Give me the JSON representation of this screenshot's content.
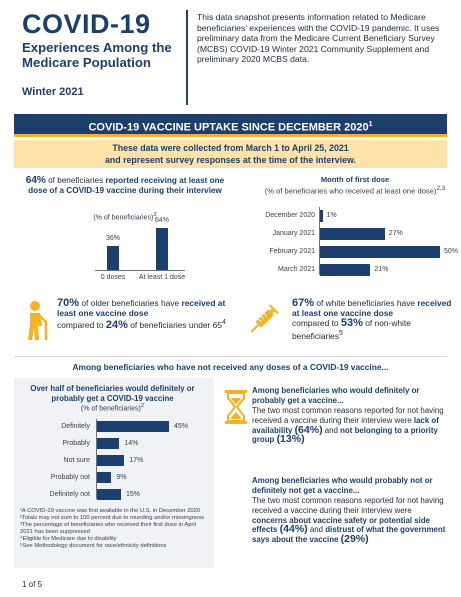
{
  "header": {
    "title": "COVID-19",
    "subtitle": "Experiences Among the Medicare Population",
    "season": "Winter 2021",
    "intro": "This data snapshot presents information related to Medicare beneficiaries’ experiences with the COVID-19 pandemic. It uses preliminary data from the Medicare Current Beneficiary Survey (MCBS) COVID-19 Winter 2021 Community Supplement and preliminary 2020 MCBS data."
  },
  "banner": {
    "text": "COVID-19 VACCINE UPTAKE SINCE DECEMBER 2020",
    "sup": "1"
  },
  "note": {
    "line1": "These data were collected from March 1 to April 25, 2021",
    "line2": "and represent survey responses at the time of the interview."
  },
  "left_stat": {
    "pct": "64%",
    "text1": " of beneficiaries ",
    "bold": "reported receiving at least one dose of a COVID-19 vaccine during their interview",
    "pct_note": "(% of beneficiaries)",
    "pct_note_sup": "2"
  },
  "month_chart": {
    "title": "Month of first dose",
    "subtitle": "(% of beneficiaries who received at least one dose)",
    "subtitle_sup": "2,3"
  },
  "stat_older": {
    "pct": "70%",
    "text1": " of older beneficiaries have ",
    "bold": "received at least one vaccine dose",
    "text2": " compared to ",
    "pct2": "24%",
    "text3": " of beneficiaries under 65",
    "sup": "4"
  },
  "stat_white": {
    "pct": "67%",
    "text1": " of white beneficiaries have ",
    "bold": "received at least one vaccine dose",
    "text2": " compared to ",
    "pct2": "53%",
    "text3": " of non-white beneficiaries",
    "sup": "5"
  },
  "section2": "Among beneficiaries who have not received any doses of a COVID-19 vaccine...",
  "likelihood_chart": {
    "title": "Over half of beneficiaries would definitely or probably get a COVID-19 vaccine",
    "subtitle": "(% of beneficiaries)",
    "subtitle_sup": "2"
  },
  "chart_data": [
    {
      "type": "bar",
      "categories": [
        "0 doses",
        "At least 1 dose"
      ],
      "values": [
        36,
        64
      ],
      "labels": [
        "36%",
        "64%"
      ]
    },
    {
      "type": "bar",
      "orientation": "horizontal",
      "title": "Month of first dose",
      "categories": [
        "December 2020",
        "January 2021",
        "February 2021",
        "March 2021"
      ],
      "values": [
        1,
        27,
        50,
        21
      ],
      "labels": [
        "1%",
        "27%",
        "50%",
        "21%"
      ]
    },
    {
      "type": "bar",
      "orientation": "horizontal",
      "title": "Over half of beneficiaries would definitely or probably get a COVID-19 vaccine",
      "categories": [
        "Definitely",
        "Probably",
        "Not sure",
        "Probably not",
        "Definitely not"
      ],
      "values": [
        45,
        14,
        17,
        9,
        15
      ],
      "labels": [
        "45%",
        "14%",
        "17%",
        "9%",
        "15%"
      ]
    }
  ],
  "footnotes": [
    "¹A COVID-19 vaccine was first available in the U.S. in December 2020",
    "²Totals may not sum to 100 percent due to rounding and/or missingness",
    "³The percentage of beneficiaries who received their first dose in April 2021 has been suppressed",
    "⁴Eligible for Medicare due to disability",
    "⁵See Methodology document for race/ethnicity definitions"
  ],
  "right1": {
    "title": "Among beneficiaries who would definitely or probably get a vaccine...",
    "text1": "The two most common reasons reported for not having received a vaccine during their interview were ",
    "b1": "lack of availability",
    "pct1": "(64%)",
    "text2": " and ",
    "b2": "not belonging to a priority group",
    "pct2": "(13%)"
  },
  "right2": {
    "title": "Among beneficiaries who would probably not or definitely not get a vaccine...",
    "text1": "The two most common reasons reported for not having received a vaccine during their interview were ",
    "b1": "concerns about vaccine safety or potential side effects",
    "pct1": "(44%)",
    "text2": " and ",
    "b2": "distrust of what the government says about the vaccine",
    "pct2": "(29%)"
  },
  "icons": {
    "older": "person-with-cane-icon",
    "vaccine": "syringe-icon",
    "hourglass": "hourglass-icon"
  },
  "colors": {
    "navy": "#1c3f6e",
    "gold": "#f5b324",
    "note_bg": "#fde3a7"
  },
  "page": "1 of 5"
}
